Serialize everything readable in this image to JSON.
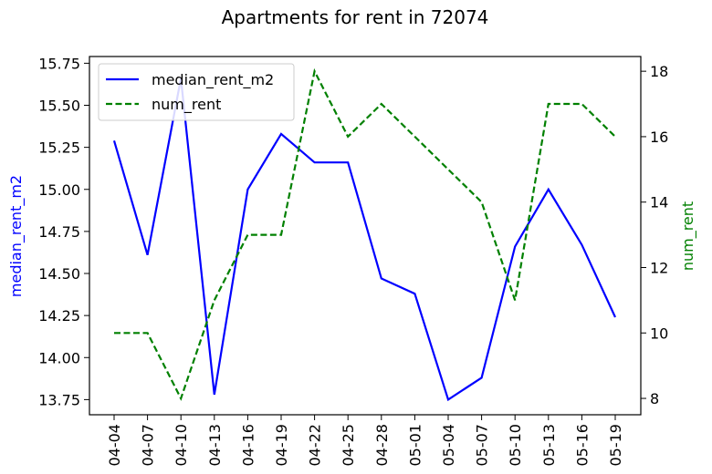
{
  "chart_data": {
    "type": "line",
    "title": "Apartments for rent in 72074",
    "x": [
      "2024-04-04",
      "2024-04-07",
      "2024-04-10",
      "2024-04-13",
      "2024-04-16",
      "2024-04-19",
      "2024-04-22",
      "2024-04-25",
      "2024-04-28",
      "2024-05-01",
      "2024-05-04",
      "2024-05-07",
      "2024-05-10",
      "2024-05-13",
      "2024-05-16",
      "2024-05-19"
    ],
    "x_tick_labels": [
      "04-04",
      "04-07",
      "04-10",
      "04-13",
      "04-16",
      "04-19",
      "04-22",
      "04-25",
      "04-28",
      "05-01",
      "05-04",
      "05-07",
      "05-10",
      "05-13",
      "05-16",
      "05-19"
    ],
    "left_axis": {
      "label": "median_rent_m2",
      "color": "#0000ff",
      "ylim": [
        13.66,
        15.79
      ],
      "ticks": [
        13.75,
        14.0,
        14.25,
        14.5,
        14.75,
        15.0,
        15.25,
        15.5,
        15.75
      ],
      "tick_labels": [
        "13.75",
        "14.00",
        "14.25",
        "14.50",
        "14.75",
        "15.00",
        "15.25",
        "15.50",
        "15.75"
      ]
    },
    "right_axis": {
      "label": "num_rent",
      "color": "#008000",
      "ylim": [
        7.5,
        18.45
      ],
      "ticks": [
        8,
        10,
        12,
        14,
        16,
        18
      ],
      "tick_labels": [
        "8",
        "10",
        "12",
        "14",
        "16",
        "18"
      ]
    },
    "series": [
      {
        "name": "median_rent_m2",
        "axis": "left",
        "color": "#0000ff",
        "style": "solid",
        "values": [
          15.29,
          14.61,
          15.66,
          13.78,
          15.0,
          15.33,
          15.16,
          15.16,
          14.47,
          14.38,
          13.75,
          13.88,
          14.66,
          15.0,
          14.67,
          14.24
        ]
      },
      {
        "name": "num_rent",
        "axis": "right",
        "color": "#008000",
        "style": "dashed",
        "values": [
          10,
          10,
          8,
          11,
          13,
          13,
          18,
          16,
          17,
          16,
          15,
          14,
          11,
          17,
          17,
          16
        ]
      }
    ],
    "legend": {
      "placement": "top-left"
    },
    "grid": false
  }
}
